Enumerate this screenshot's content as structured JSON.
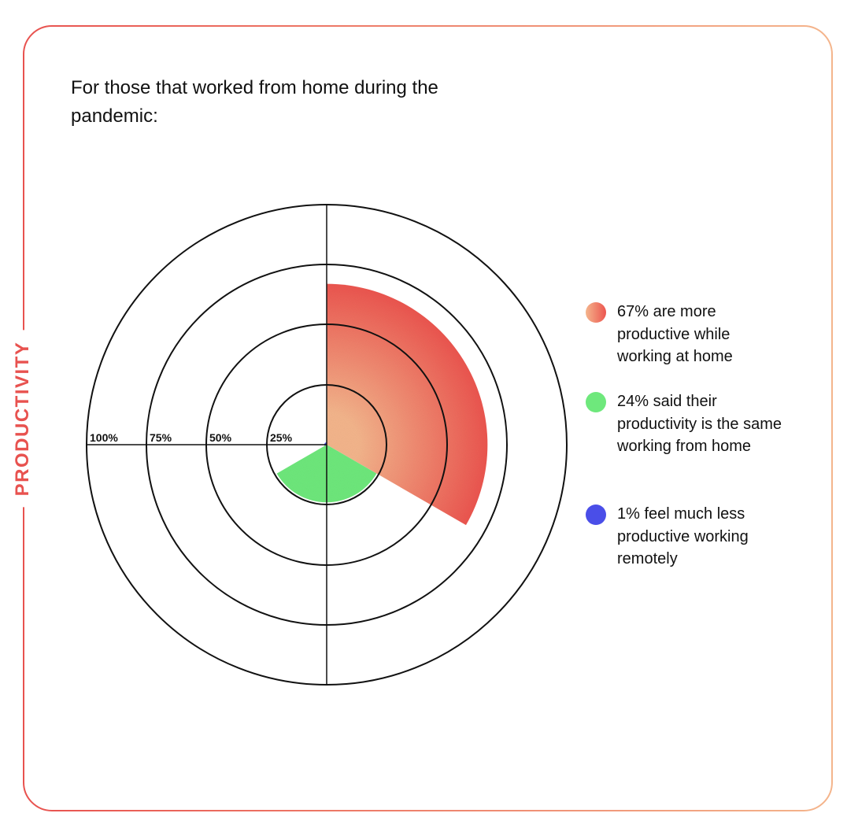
{
  "side_label": "PRODUCTIVITY",
  "title": "For those that worked from home during the pandemic:",
  "colors": {
    "frame_start": "#e8524f",
    "frame_end": "#f4b58c",
    "more_productive_light": "#f4b58c",
    "more_productive_dark": "#ec554f",
    "same": "#6ee87c",
    "less": "#4a4ee8",
    "axis": "#111111"
  },
  "chart_data": {
    "type": "polar-area",
    "radial_ticks": [
      "25%",
      "50%",
      "75%",
      "100%"
    ],
    "radial_max": 100,
    "series": [
      {
        "value": 67,
        "color": "more_productive"
      },
      {
        "value": 24,
        "color": "same"
      },
      {
        "value": 1,
        "color": "less"
      }
    ]
  },
  "legend": [
    {
      "text": "67% are more productive while working at home",
      "color_key": "more_productive"
    },
    {
      "text": "24% said their productivity is the same working from home",
      "color_key": "same"
    },
    {
      "text": "1% feel much less productive working remotely",
      "color_key": "less"
    }
  ]
}
